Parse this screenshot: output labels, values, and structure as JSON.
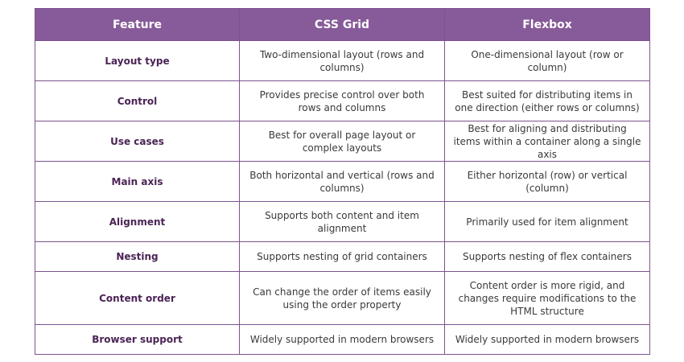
{
  "table": {
    "header": [
      "Feature",
      "CSS Grid",
      "Flexbox"
    ],
    "rows": [
      [
        "Layout type",
        "Two-dimensional layout (rows and columns)",
        "One-dimensional layout (row or column)"
      ],
      [
        "Control",
        "Provides precise control over both rows and columns",
        "Best suited for distributing items in one direction (either rows or columns)"
      ],
      [
        "Use cases",
        "Best for overall page layout or complex layouts",
        "Best for aligning and distributing items within a container along a single axis"
      ],
      [
        "Main axis",
        "Both horizontal and vertical (rows and columns)",
        "Either horizontal (row) or vertical (column)"
      ],
      [
        "Alignment",
        "Supports both content and item alignment",
        "Primarily used for item alignment"
      ],
      [
        "Nesting",
        "Supports nesting of grid containers",
        "Supports nesting of flex containers"
      ],
      [
        "Content order",
        "Can change the order of items easily using the order property",
        "Content order is more rigid, and changes require modifications to the HTML structure"
      ],
      [
        "Browser support",
        "Widely supported in modern browsers",
        "Widely supported in modern browsers"
      ]
    ]
  }
}
